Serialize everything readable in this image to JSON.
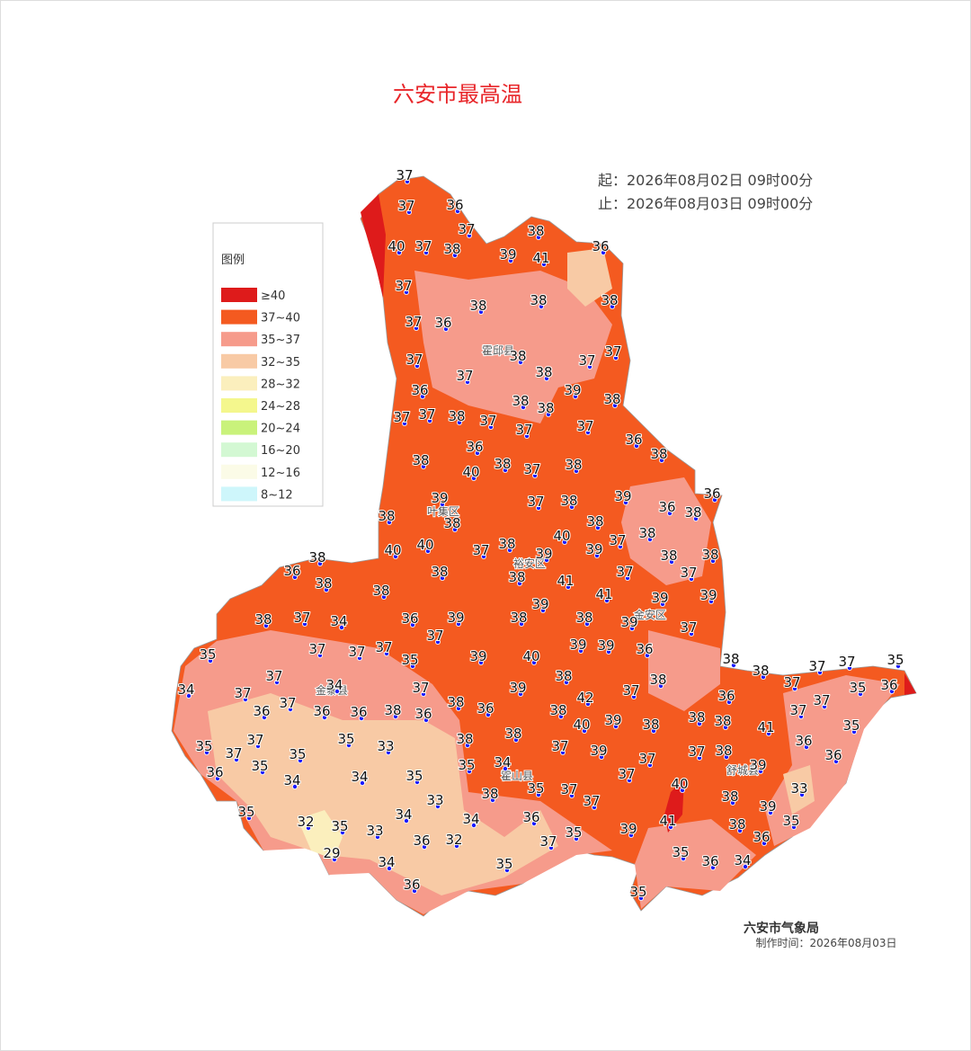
{
  "title": "六安市最高温",
  "time_start": "起：2026年08月02日 09时00分",
  "time_end": "止：2026年08月03日 09时00分",
  "legend": {
    "title": "图例",
    "items": [
      {
        "label": "≥40",
        "color": "#de1b1b"
      },
      {
        "label": "37~40",
        "color": "#f45a20"
      },
      {
        "label": "35~37",
        "color": "#f69b8b"
      },
      {
        "label": "32~35",
        "color": "#f8caa5"
      },
      {
        "label": "28~32",
        "color": "#fbefbd"
      },
      {
        "label": "24~28",
        "color": "#f4f78d"
      },
      {
        "label": "20~24",
        "color": "#c9f27b"
      },
      {
        "label": "16~20",
        "color": "#d3f8d3"
      },
      {
        "label": "12~16",
        "color": "#fbfbe7"
      },
      {
        "label": "8~12",
        "color": "#cef6fb"
      }
    ]
  },
  "districts": [
    "霍邱县",
    "叶集区",
    "裕安区",
    "金安区",
    "金寨县",
    "霍山县",
    "舒城县"
  ],
  "stations": [
    37,
    37,
    36,
    37,
    38,
    40,
    37,
    38,
    39,
    41,
    36,
    37,
    38,
    38,
    38,
    37,
    36,
    37,
    37,
    38,
    38,
    37,
    37,
    36,
    39,
    38,
    38,
    38,
    37,
    37,
    38,
    37,
    37,
    37,
    36,
    36,
    38,
    38,
    40,
    38,
    37,
    38,
    36,
    39,
    37,
    38,
    39,
    36,
    38,
    38,
    38,
    38,
    40,
    37,
    38,
    40,
    40,
    37,
    38,
    39,
    39,
    38,
    38,
    38,
    36,
    38,
    38,
    41,
    37,
    37,
    38,
    38,
    41,
    39,
    39,
    38,
    37,
    34,
    36,
    39,
    38,
    39,
    38,
    39,
    37,
    37,
    35,
    37,
    37,
    37,
    35,
    39,
    40,
    39,
    39,
    36,
    38,
    38,
    37,
    37,
    35,
    37,
    34,
    38,
    38,
    37,
    36,
    35,
    34,
    37,
    37,
    39,
    42,
    37,
    36,
    37,
    37,
    36,
    36,
    36,
    38,
    36,
    38,
    36,
    38,
    38,
    38,
    37,
    40,
    39,
    38,
    41,
    35,
    37,
    35,
    37,
    35,
    33,
    35,
    38,
    38,
    37,
    39,
    37,
    38,
    36,
    36,
    37,
    39,
    34,
    35,
    35,
    36,
    34,
    34,
    35,
    37,
    40,
    33,
    35,
    37,
    38,
    33,
    37,
    38,
    39,
    35,
    34,
    34,
    36,
    32,
    35,
    33,
    41,
    38,
    35,
    39,
    35,
    36,
    36,
    32,
    37,
    29,
    35,
    34,
    35,
    36,
    34,
    36,
    35
  ],
  "footer": {
    "agency": "六安市气象局",
    "made": "制作时间：2026年08月03日"
  }
}
